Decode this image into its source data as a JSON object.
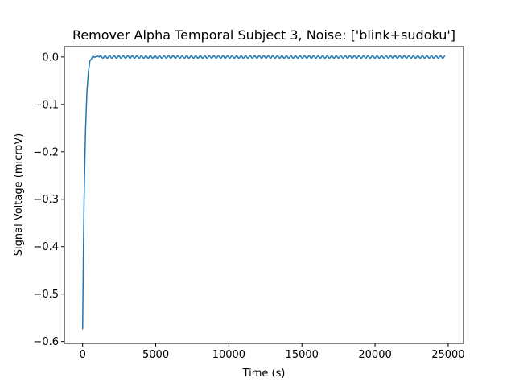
{
  "chart_data": {
    "type": "line",
    "title": "Remover Alpha Temporal Subject 3, Noise: ['blink+sudoku']",
    "xlabel": "Time (s)",
    "ylabel": "Signal Voltage (microV)",
    "xlim": [
      -1250,
      26050
    ],
    "ylim": [
      -0.604,
      0.0218
    ],
    "xticks": [
      0,
      5000,
      10000,
      15000,
      20000,
      25000
    ],
    "xtick_labels": [
      "0",
      "5000",
      "10000",
      "15000",
      "20000",
      "25000"
    ],
    "yticks": [
      0.0,
      -0.1,
      -0.2,
      -0.3,
      -0.4,
      -0.5,
      -0.6
    ],
    "ytick_labels": [
      "0.0",
      "−0.1",
      "−0.2",
      "−0.3",
      "−0.4",
      "−0.5",
      "−0.6"
    ],
    "grid": false,
    "series": [
      {
        "color": "#1f77b4",
        "x": [
          0,
          50,
          100,
          150,
          200,
          250,
          300,
          400,
          500,
          600,
          700,
          800,
          1000,
          1150
        ],
        "y": [
          -0.574,
          -0.42,
          -0.3,
          -0.22,
          -0.155,
          -0.11,
          -0.07,
          -0.03,
          -0.008,
          -0.004,
          0.002,
          -0.001,
          0.002,
          0.0
        ],
        "oscillation": {
          "from_x": 1150,
          "to_x": 24800,
          "center": 0.0,
          "amplitude": 0.0025,
          "period": 310
        }
      }
    ]
  }
}
